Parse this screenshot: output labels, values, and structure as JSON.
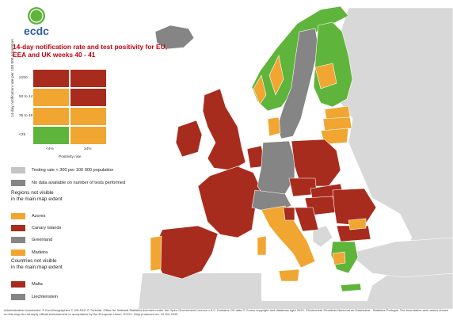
{
  "colors": {
    "red": "#a82c1e",
    "orange": "#f0a631",
    "green": "#5fb43b",
    "dark_grey": "#858585",
    "light_grey": "#c5c5c5",
    "title": "#c4000e",
    "non_eu": "#d8d8d8"
  },
  "header": {
    "logo_text": "ecdc",
    "title": "14-day notification rate and test positivity for EU, EEA and UK weeks 40 - 41"
  },
  "matrix": {
    "y_axis_title": "14-day notification rate per 100 000 population",
    "y_ticks": [
      "≥150",
      "50 to 149",
      "25 to 49",
      "<25"
    ],
    "x_axis_title": "Positivity rate",
    "x_ticks": [
      "<4%",
      "≥4%"
    ],
    "cell_colors": [
      [
        "red",
        "red"
      ],
      [
        "orange",
        "red"
      ],
      [
        "orange",
        "orange"
      ],
      [
        "green",
        "orange"
      ]
    ]
  },
  "legend": {
    "items": [
      {
        "label": "Testing rate < 300 per 100 000 population",
        "color": "light_grey"
      },
      {
        "label": "No data available on number of tests performed",
        "color": "dark_grey"
      }
    ],
    "regions_heading": "Regions not visible\nin the main map extent",
    "regions": [
      {
        "label": "Azores",
        "color": "orange"
      },
      {
        "label": "Canary Islands",
        "color": "red"
      },
      {
        "label": "Greenland",
        "color": "dark_grey"
      },
      {
        "label": "Madeira",
        "color": "orange"
      }
    ],
    "countries_heading": "Countries not visible\nin the main map extent",
    "countries": [
      {
        "label": "Malta",
        "color": "red"
      },
      {
        "label": "Liechtenstein",
        "color": "dark_grey"
      }
    ]
  },
  "footer": "Administrative boundaries: © EuroGeographics © UN-FAO © Turkstat. Office for National Statistics licensed under the Open Government Licence v.3.0. Contains OS data © Crown copyright and database right 2020. ©Kartverket ©Instituto Nacional de Estatística - Statistics Portugal. The boundaries and names shown on this map do not imply official endorsement or acceptance by the European Union. ECDC. Map produced on: 15 Oct 2020"
}
